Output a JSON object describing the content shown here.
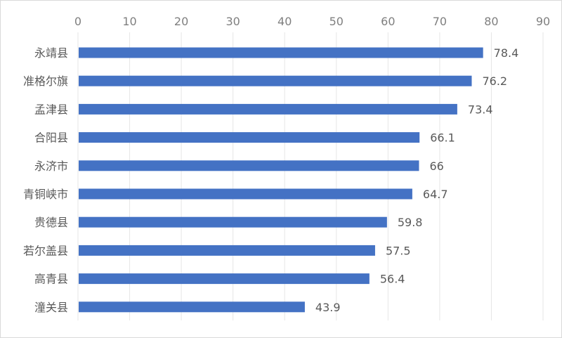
{
  "chart_data": {
    "type": "bar",
    "orientation": "horizontal",
    "categories": [
      "永靖县",
      "准格尔旗",
      "孟津县",
      "合阳县",
      "永济市",
      "青铜峡市",
      "贵德县",
      "若尔盖县",
      "高青县",
      "潼关县"
    ],
    "values": [
      78.4,
      76.2,
      73.4,
      66.1,
      66,
      64.7,
      59.8,
      57.5,
      56.4,
      43.9
    ],
    "value_labels": [
      "78.4",
      "76.2",
      "73.4",
      "66.1",
      "66",
      "64.7",
      "59.8",
      "57.5",
      "56.4",
      "43.9"
    ],
    "x_ticks": [
      "0",
      "10",
      "20",
      "30",
      "40",
      "50",
      "60",
      "70",
      "80",
      "90"
    ],
    "xlim": [
      0,
      90
    ],
    "x_axis_position": "top",
    "grid": true,
    "legend": "none",
    "bar_color": "#4472c4",
    "title": "",
    "xlabel": "",
    "ylabel": ""
  }
}
